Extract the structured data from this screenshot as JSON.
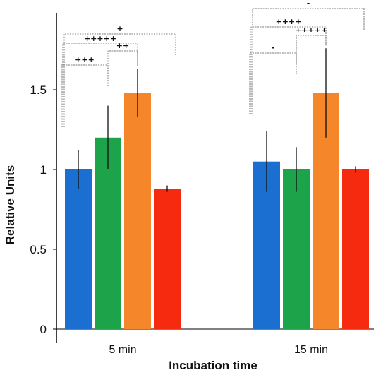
{
  "chart_data": {
    "type": "bar",
    "categories": [
      "5 min",
      "15 min"
    ],
    "series": [
      {
        "values": [
          1.0,
          1.05
        ],
        "errors": [
          0.12,
          0.19
        ],
        "color": "#1a6fd0"
      },
      {
        "values": [
          1.2,
          1.0
        ],
        "errors": [
          0.2,
          0.14
        ],
        "color": "#1da44a"
      },
      {
        "values": [
          1.48,
          1.48
        ],
        "errors": [
          0.15,
          0.28
        ],
        "color": "#f5862a"
      },
      {
        "values": [
          0.88,
          1.0
        ],
        "errors": [
          0.02,
          0.02
        ],
        "color": "#f52a0e"
      }
    ],
    "xlabel": "Incubation time",
    "ylabel": "Relative Units",
    "yticks": [
      {
        "value": 0,
        "label": "0"
      },
      {
        "value": 0.5,
        "label": "0.5"
      },
      {
        "value": 1,
        "label": "1"
      },
      {
        "value": 1.5,
        "label": "1.5"
      }
    ],
    "ylim": [
      0,
      1.9
    ],
    "significance": [
      {
        "group": 0,
        "from": 0,
        "to": 1,
        "label": "+++"
      },
      {
        "group": 0,
        "from": 1,
        "to": 2,
        "label": "++"
      },
      {
        "group": 0,
        "from": 0,
        "to": 2,
        "label": "+++++"
      },
      {
        "group": 0,
        "from": 0,
        "to": 3,
        "label": "+"
      },
      {
        "group": 1,
        "from": 0,
        "to": 1,
        "label": "-"
      },
      {
        "group": 1,
        "from": 1,
        "to": 2,
        "label": "+++++"
      },
      {
        "group": 1,
        "from": 0,
        "to": 2,
        "label": "++++"
      },
      {
        "group": 1,
        "from": 0,
        "to": 3,
        "label": "-"
      }
    ]
  }
}
